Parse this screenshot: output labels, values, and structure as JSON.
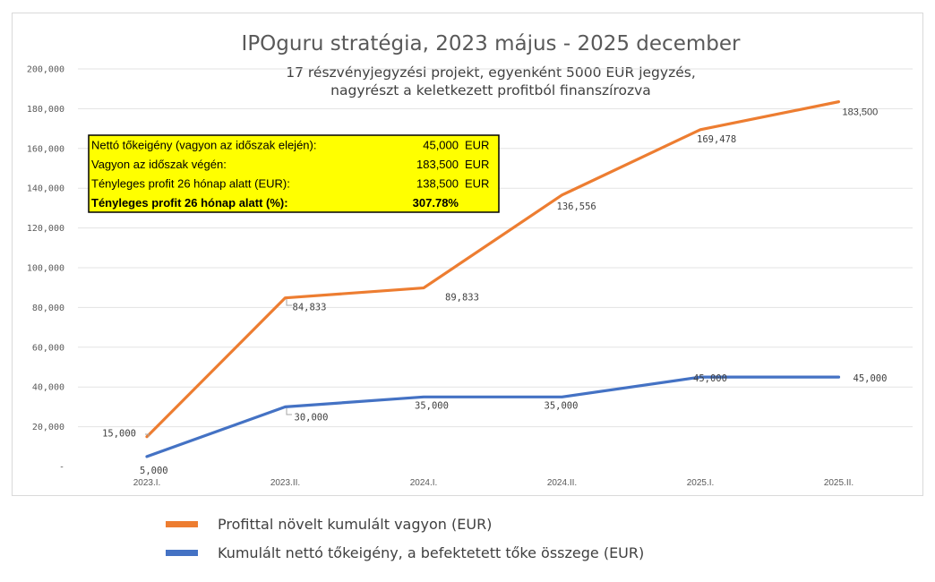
{
  "chart_data": {
    "type": "line",
    "title": "IPOguru stratégia, 2023 május - 2025 december",
    "subtitle_lines": [
      "17 részvényjegyzési projekt, egyenként 5000 EUR jegyzés,",
      "nagyrészt a keletkezett profitból finanszírozva"
    ],
    "categories": [
      "2023.I.",
      "2023.II.",
      "2024.I.",
      "2024.II.",
      "2025.I.",
      "2025.II."
    ],
    "ylim": [
      0,
      200000
    ],
    "yticks": [
      0,
      20000,
      40000,
      60000,
      80000,
      100000,
      120000,
      140000,
      160000,
      180000,
      200000
    ],
    "ytick_labels": [
      "-",
      "20,000",
      "40,000",
      "60,000",
      "80,000",
      "100,000",
      "120,000",
      "140,000",
      "160,000",
      "180,000",
      "200,000"
    ],
    "grid": true,
    "legend_position": "bottom",
    "series": [
      {
        "name": "Profittal növelt kumulált vagyon (EUR)",
        "color": "#ed7d31",
        "values": [
          15000,
          84833,
          89833,
          136556,
          169478,
          183500
        ],
        "labels": [
          "15,000",
          "84,833",
          "89,833",
          "136,556",
          "169,478",
          "183,500"
        ]
      },
      {
        "name": "Kumulált nettó tőkeigény, a befektetett tőke összege (EUR)",
        "color": "#4472c4",
        "values": [
          5000,
          30000,
          35000,
          35000,
          45000,
          45000
        ],
        "labels": [
          "5,000",
          "30,000",
          "35,000",
          "35,000",
          "45,000",
          "45,000"
        ]
      }
    ],
    "summary_table": [
      {
        "label": "Nettó tőkeigény (vagyon az időszak elején):",
        "value": "45,000",
        "unit": "EUR",
        "bold": false
      },
      {
        "label": "Vagyon az időszak végén:",
        "value": "183,500",
        "unit": "EUR",
        "bold": false
      },
      {
        "label": "Tényleges profit 26 hónap alatt (EUR):",
        "value": "138,500",
        "unit": "EUR",
        "bold": false
      },
      {
        "label": "Tényleges profit 26 hónap alatt (%):",
        "value": "307.78%",
        "unit": "",
        "bold": true
      }
    ],
    "summary_color": "#ffff00"
  }
}
